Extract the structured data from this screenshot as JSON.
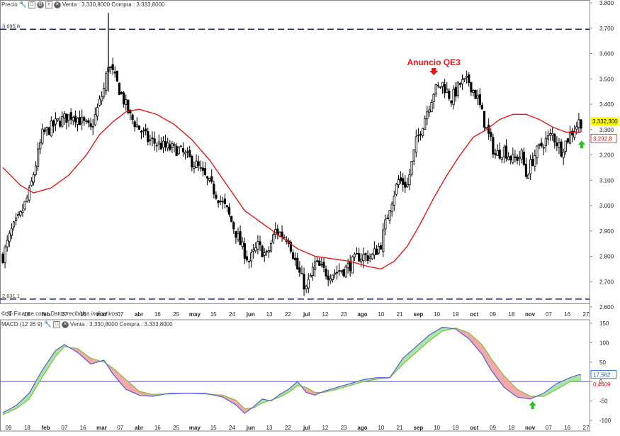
{
  "price_header": {
    "label": "Precio",
    "quote": "Venta : 3.330,8000 Compra : 3.333,8000"
  },
  "macd_header": {
    "label": "MACD (12 26 9)",
    "quote": "Venta : 3.330,8000 Compra : 3.333,8000"
  },
  "footer": {
    "source": "© IT-Finance.com",
    "note": "Datos recibidos indicativos"
  },
  "colors": {
    "candle": "#000000",
    "ma": "#e31a1c",
    "dash": "#1a237e",
    "macd_line": "#5b5bd6",
    "signal_line": "#7fbf3f",
    "fill_up": "#a6e6a0",
    "fill_down": "#f2a6a6",
    "price_badge": "#ffff00",
    "ma_badge": "#e31a1c",
    "macd_badge": "#1565c0",
    "arrow_red": "#e31a1c",
    "arrow_green": "#22c422"
  },
  "icons": [
    "wrench-icon",
    "window-icon",
    "gear-icon",
    "plus-icon",
    "close-icon"
  ],
  "chart_data": [
    {
      "type": "candlestick",
      "title": "",
      "ylim": [
        2.6,
        3.8
      ],
      "y_ticks": [
        "2.600",
        "2.700",
        "2.800",
        "2.900",
        "3.000",
        "3.100",
        "3.200",
        "3.300",
        "3.400",
        "3.500",
        "3.600",
        "3.700",
        "3.800"
      ],
      "x_ticks": [
        "09",
        "18",
        "feb",
        "07",
        "16",
        "mar",
        "07",
        "abr",
        "16",
        "25",
        "may",
        "15",
        "24",
        "jun",
        "13",
        "22",
        "jul",
        "12",
        "23",
        "ago",
        "10",
        "21",
        "sep",
        "10",
        "19",
        "oct",
        "09",
        "18",
        "nov",
        "07",
        "16",
        "27"
      ],
      "close_points": [
        [
          0,
          2.8
        ],
        [
          4,
          2.9
        ],
        [
          8,
          2.96
        ],
        [
          12,
          3.05
        ],
        [
          18,
          3.28
        ],
        [
          25,
          3.33
        ],
        [
          32,
          3.36
        ],
        [
          40,
          3.3
        ],
        [
          46,
          3.46
        ],
        [
          48,
          3.56
        ],
        [
          52,
          3.48
        ],
        [
          58,
          3.35
        ],
        [
          66,
          3.26
        ],
        [
          74,
          3.23
        ],
        [
          80,
          3.22
        ],
        [
          88,
          3.16
        ],
        [
          96,
          3.06
        ],
        [
          102,
          2.98
        ],
        [
          108,
          2.85
        ],
        [
          112,
          2.78
        ],
        [
          116,
          2.84
        ],
        [
          120,
          2.8
        ],
        [
          124,
          2.9
        ],
        [
          130,
          2.87
        ],
        [
          134,
          2.75
        ],
        [
          138,
          2.67
        ],
        [
          142,
          2.77
        ],
        [
          148,
          2.73
        ],
        [
          156,
          2.75
        ],
        [
          162,
          2.8
        ],
        [
          168,
          2.8
        ],
        [
          172,
          2.85
        ],
        [
          176,
          3.0
        ],
        [
          180,
          3.1
        ],
        [
          184,
          3.08
        ],
        [
          188,
          3.25
        ],
        [
          192,
          3.35
        ],
        [
          196,
          3.45
        ],
        [
          200,
          3.48
        ],
        [
          204,
          3.42
        ],
        [
          208,
          3.48
        ],
        [
          212,
          3.49
        ],
        [
          216,
          3.42
        ],
        [
          220,
          3.3
        ],
        [
          224,
          3.2
        ],
        [
          228,
          3.22
        ],
        [
          232,
          3.18
        ],
        [
          236,
          3.2
        ],
        [
          238,
          3.12
        ],
        [
          242,
          3.2
        ],
        [
          246,
          3.25
        ],
        [
          250,
          3.28
        ],
        [
          254,
          3.22
        ],
        [
          258,
          3.28
        ],
        [
          262,
          3.33
        ]
      ],
      "ma_points": [
        [
          0,
          3.15
        ],
        [
          8,
          3.08
        ],
        [
          14,
          3.05
        ],
        [
          22,
          3.07
        ],
        [
          30,
          3.12
        ],
        [
          38,
          3.2
        ],
        [
          44,
          3.28
        ],
        [
          50,
          3.33
        ],
        [
          56,
          3.37
        ],
        [
          62,
          3.38
        ],
        [
          70,
          3.36
        ],
        [
          78,
          3.32
        ],
        [
          86,
          3.26
        ],
        [
          94,
          3.18
        ],
        [
          102,
          3.08
        ],
        [
          110,
          2.98
        ],
        [
          118,
          2.93
        ],
        [
          126,
          2.88
        ],
        [
          134,
          2.83
        ],
        [
          142,
          2.8
        ],
        [
          150,
          2.79
        ],
        [
          158,
          2.78
        ],
        [
          166,
          2.76
        ],
        [
          172,
          2.75
        ],
        [
          178,
          2.78
        ],
        [
          184,
          2.84
        ],
        [
          190,
          2.93
        ],
        [
          196,
          3.03
        ],
        [
          202,
          3.12
        ],
        [
          208,
          3.2
        ],
        [
          214,
          3.27
        ],
        [
          220,
          3.3
        ],
        [
          226,
          3.34
        ],
        [
          232,
          3.36
        ],
        [
          238,
          3.36
        ],
        [
          244,
          3.34
        ],
        [
          250,
          3.31
        ],
        [
          256,
          3.29
        ],
        [
          262,
          3.29
        ]
      ],
      "reference_lines": [
        {
          "label": "3.695,8",
          "value": 3.6958
        },
        {
          "label": "2.631,1",
          "value": 2.6311
        }
      ],
      "annotation": {
        "text": "Anuncio QE3",
        "x": 196,
        "y": 3.5
      },
      "green_marker": {
        "x": 262,
        "y": 3.24
      },
      "last_price": {
        "label": "3.332,300",
        "value": 3.3323
      },
      "ma_value": {
        "label": "3.292,8",
        "value": 3.2928
      },
      "n_bars": 264
    },
    {
      "type": "line",
      "title": "MACD (12 26 9)",
      "ylim": [
        -115,
        155
      ],
      "y_ticks": [
        "-100",
        "-50",
        "0",
        "50",
        "100",
        "150"
      ],
      "macd_points": [
        [
          0,
          -80
        ],
        [
          6,
          -62
        ],
        [
          12,
          -30
        ],
        [
          18,
          30
        ],
        [
          24,
          80
        ],
        [
          28,
          95
        ],
        [
          34,
          75
        ],
        [
          40,
          45
        ],
        [
          46,
          55
        ],
        [
          50,
          20
        ],
        [
          56,
          -20
        ],
        [
          62,
          -35
        ],
        [
          68,
          -38
        ],
        [
          76,
          -30
        ],
        [
          84,
          -30
        ],
        [
          92,
          -30
        ],
        [
          100,
          -40
        ],
        [
          106,
          -60
        ],
        [
          110,
          -82
        ],
        [
          114,
          -65
        ],
        [
          118,
          -45
        ],
        [
          122,
          -50
        ],
        [
          126,
          -33
        ],
        [
          130,
          -20
        ],
        [
          134,
          0
        ],
        [
          138,
          -28
        ],
        [
          142,
          -35
        ],
        [
          146,
          -25
        ],
        [
          152,
          -15
        ],
        [
          158,
          -5
        ],
        [
          164,
          5
        ],
        [
          170,
          10
        ],
        [
          176,
          10
        ],
        [
          182,
          60
        ],
        [
          188,
          90
        ],
        [
          194,
          120
        ],
        [
          200,
          140
        ],
        [
          206,
          135
        ],
        [
          212,
          110
        ],
        [
          218,
          70
        ],
        [
          222,
          30
        ],
        [
          228,
          -15
        ],
        [
          234,
          -40
        ],
        [
          240,
          -45
        ],
        [
          246,
          -30
        ],
        [
          252,
          -5
        ],
        [
          258,
          10
        ],
        [
          262,
          17.562
        ]
      ],
      "signal_points": [
        [
          0,
          -85
        ],
        [
          6,
          -70
        ],
        [
          12,
          -45
        ],
        [
          18,
          12
        ],
        [
          24,
          65
        ],
        [
          28,
          90
        ],
        [
          34,
          85
        ],
        [
          40,
          60
        ],
        [
          46,
          50
        ],
        [
          50,
          35
        ],
        [
          56,
          5
        ],
        [
          62,
          -25
        ],
        [
          68,
          -33
        ],
        [
          76,
          -32
        ],
        [
          84,
          -30
        ],
        [
          92,
          -32
        ],
        [
          100,
          -35
        ],
        [
          106,
          -48
        ],
        [
          110,
          -70
        ],
        [
          114,
          -68
        ],
        [
          118,
          -55
        ],
        [
          122,
          -48
        ],
        [
          126,
          -40
        ],
        [
          130,
          -28
        ],
        [
          134,
          -10
        ],
        [
          138,
          -15
        ],
        [
          142,
          -28
        ],
        [
          146,
          -28
        ],
        [
          152,
          -20
        ],
        [
          158,
          -10
        ],
        [
          164,
          0
        ],
        [
          170,
          6
        ],
        [
          176,
          10
        ],
        [
          182,
          45
        ],
        [
          188,
          75
        ],
        [
          194,
          105
        ],
        [
          200,
          130
        ],
        [
          206,
          138
        ],
        [
          212,
          125
        ],
        [
          218,
          95
        ],
        [
          222,
          60
        ],
        [
          228,
          15
        ],
        [
          234,
          -20
        ],
        [
          240,
          -38
        ],
        [
          246,
          -38
        ],
        [
          252,
          -20
        ],
        [
          258,
          0
        ],
        [
          262,
          0.4409
        ]
      ],
      "green_marker": {
        "x": 240,
        "y": -62
      },
      "macd_value": {
        "label": "17,562",
        "value": 17.562
      },
      "signal_value": {
        "label": "0,4409",
        "value": 0.4409
      }
    }
  ]
}
